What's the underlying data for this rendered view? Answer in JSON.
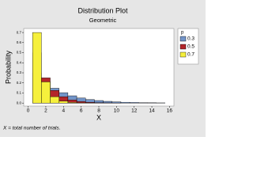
{
  "chart_data": {
    "type": "bar",
    "title": "Distribution Plot",
    "subtitle": "Geometric",
    "x_label": "X",
    "y_label": "Probability",
    "footnote": "X = total number of trials.",
    "legend_title": "p",
    "x": [
      1,
      2,
      3,
      4,
      5,
      6,
      7,
      8,
      9,
      10,
      11,
      12,
      13,
      14,
      15
    ],
    "series": [
      {
        "name": "0.3",
        "color": "#7294c8",
        "values": [
          0.3,
          0.21,
          0.147,
          0.103,
          0.072,
          0.05,
          0.035,
          0.025,
          0.017,
          0.012,
          0.008,
          0.006,
          0.004,
          0.003,
          0.002
        ]
      },
      {
        "name": "0.5",
        "color": "#b3262a",
        "values": [
          0.5,
          0.25,
          0.125,
          0.063,
          0.031,
          0.016,
          0.008,
          0.004,
          0.002,
          0.001,
          0,
          0,
          0,
          0,
          0
        ]
      },
      {
        "name": "0.7",
        "color": "#f6f03c",
        "values": [
          0.7,
          0.21,
          0.063,
          0.019,
          0.006,
          0.002,
          0.001,
          0,
          0,
          0,
          0,
          0,
          0,
          0,
          0
        ]
      }
    ],
    "xlim": [
      -0.5,
      16.5
    ],
    "xticks": [
      0,
      2,
      4,
      6,
      8,
      10,
      12,
      14,
      16
    ],
    "ylim": [
      -0.03,
      0.74
    ],
    "yticks": [
      {
        "value": 0,
        "label": "0.0"
      },
      {
        "value": 0.1,
        "label": "0.1"
      },
      {
        "value": 0.2,
        "label": "0.2"
      },
      {
        "value": 0.3,
        "label": "0.3"
      },
      {
        "value": 0.4,
        "label": "0.4"
      },
      {
        "value": 0.5,
        "label": "0.5"
      },
      {
        "value": 0.6,
        "label": "0.6"
      },
      {
        "value": 0.7,
        "label": "0.7"
      }
    ]
  }
}
